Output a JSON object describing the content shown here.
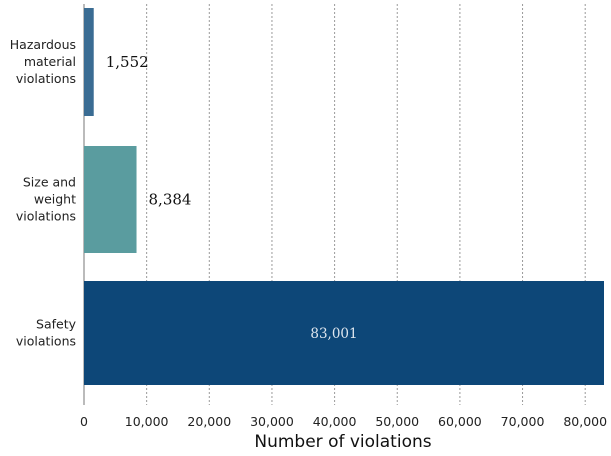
{
  "chart_data": {
    "type": "bar",
    "orientation": "horizontal",
    "categories": [
      [
        "Hazardous",
        "material",
        "violations"
      ],
      [
        "Size and",
        "weight",
        "violations"
      ],
      [
        "Safety",
        "violations"
      ]
    ],
    "values": [
      1552,
      8384,
      83001
    ],
    "value_labels": [
      "1,552",
      "8,384",
      "83,001"
    ],
    "colors": [
      "#3a6c93",
      "#5a9c9f",
      "#0d4778"
    ],
    "xlabel": "Number of violations",
    "ylabel": "",
    "title": "",
    "xlim": [
      0,
      83001
    ],
    "x_ticks": [
      0,
      10000,
      20000,
      30000,
      40000,
      50000,
      60000,
      70000,
      80000
    ],
    "x_tick_labels": [
      "0",
      "10,000",
      "20,000",
      "30,000",
      "40,000",
      "50,000",
      "60,000",
      "70,000",
      "80,000"
    ],
    "grid": "vertical dashed",
    "legend": "none"
  }
}
